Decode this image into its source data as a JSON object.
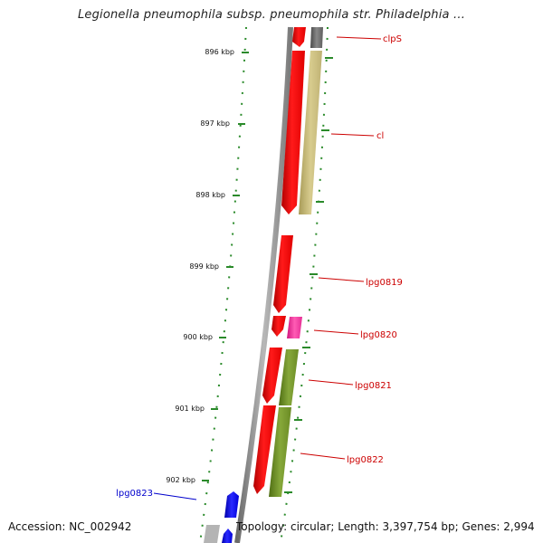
{
  "title": "Legionella pneumophila subsp. pneumophila str. Philadelphia ...",
  "footer": {
    "accession": "Accession: NC_002942",
    "summary": "Topology: circular; Length: 3,397,754 bp; Genes: 2,994"
  },
  "colors": {
    "backbone": "#8a8a8a",
    "tick": "#2a8a2a",
    "forward_gene": "#ff0000",
    "label_red": "#cc0000",
    "label_blue": "#0000cc"
  },
  "ticks": [
    "896 kbp",
    "897 kbp",
    "898 kbp",
    "899 kbp",
    "900 kbp",
    "901 kbp",
    "902 kbp"
  ],
  "genes": [
    {
      "label": "clpS",
      "color": "#cc0000"
    },
    {
      "label": "cl",
      "color": "#cc0000"
    },
    {
      "label": "lpg0819",
      "color": "#cc0000"
    },
    {
      "label": "lpg0820",
      "color": "#cc0000"
    },
    {
      "label": "lpg0821",
      "color": "#cc0000"
    },
    {
      "label": "lpg0822",
      "color": "#cc0000"
    },
    {
      "label": "lpg0823",
      "color": "#0000cc"
    }
  ]
}
